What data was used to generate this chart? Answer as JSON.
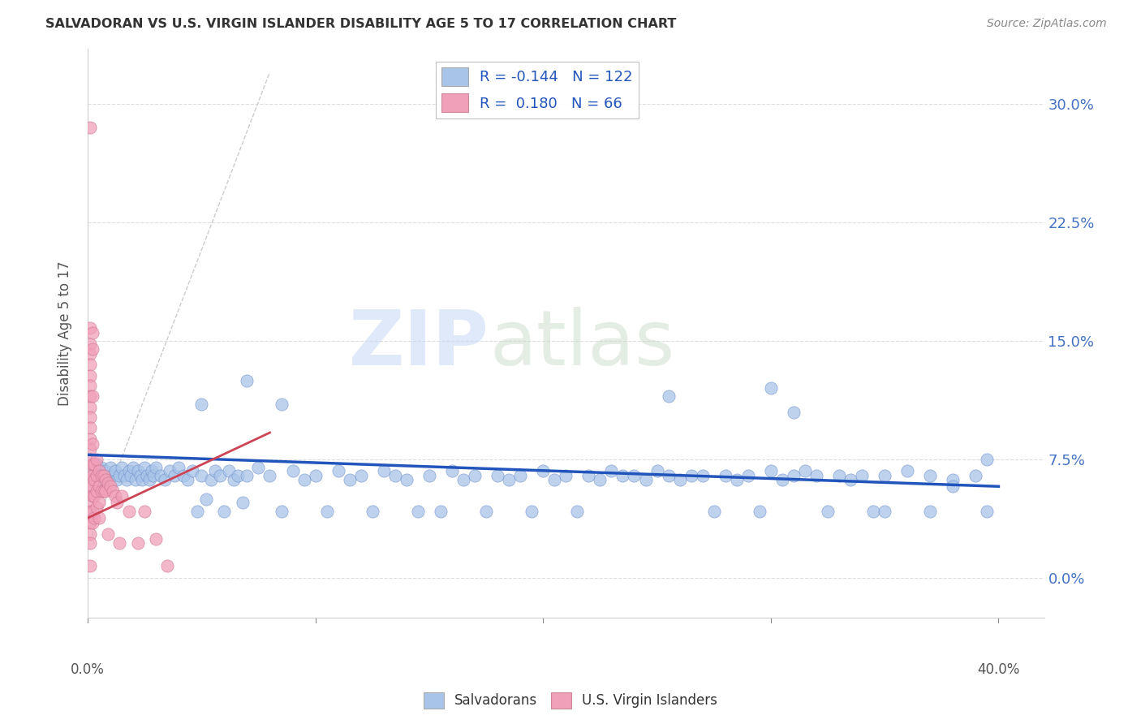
{
  "title": "SALVADORAN VS U.S. VIRGIN ISLANDER DISABILITY AGE 5 TO 17 CORRELATION CHART",
  "source": "Source: ZipAtlas.com",
  "xlabel_vals": [
    0.0,
    0.1,
    0.2,
    0.3,
    0.4
  ],
  "xlabel_edge_labels": [
    "0.0%",
    "40.0%"
  ],
  "xlabel_edge_vals": [
    0.0,
    0.4
  ],
  "ylabel_vals": [
    0.0,
    0.075,
    0.15,
    0.225,
    0.3
  ],
  "ylabel_labels": [
    "0.0%",
    "7.5%",
    "15.0%",
    "22.5%",
    "30.0%"
  ],
  "xlim": [
    0.0,
    0.42
  ],
  "ylim": [
    -0.025,
    0.335
  ],
  "watermark_zip": "ZIP",
  "watermark_atlas": "atlas",
  "legend_blue_label": "Salvadorans",
  "legend_pink_label": "U.S. Virgin Islanders",
  "blue_R": "-0.144",
  "blue_N": "122",
  "pink_R": "0.180",
  "pink_N": "66",
  "blue_color": "#a8c4e8",
  "pink_color": "#f0a0b8",
  "blue_line_color": "#2255bb",
  "pink_line_color": "#cc4455",
  "blue_line": [
    [
      0.0,
      0.078
    ],
    [
      0.4,
      0.058
    ]
  ],
  "pink_line": [
    [
      0.0,
      0.038
    ],
    [
      0.08,
      0.092
    ]
  ],
  "blue_scatter": [
    [
      0.003,
      0.068
    ],
    [
      0.004,
      0.072
    ],
    [
      0.005,
      0.065
    ],
    [
      0.006,
      0.07
    ],
    [
      0.007,
      0.062
    ],
    [
      0.008,
      0.068
    ],
    [
      0.009,
      0.065
    ],
    [
      0.01,
      0.07
    ],
    [
      0.011,
      0.065
    ],
    [
      0.012,
      0.068
    ],
    [
      0.013,
      0.062
    ],
    [
      0.014,
      0.065
    ],
    [
      0.015,
      0.07
    ],
    [
      0.016,
      0.065
    ],
    [
      0.017,
      0.062
    ],
    [
      0.018,
      0.068
    ],
    [
      0.019,
      0.065
    ],
    [
      0.02,
      0.07
    ],
    [
      0.021,
      0.062
    ],
    [
      0.022,
      0.068
    ],
    [
      0.023,
      0.065
    ],
    [
      0.024,
      0.062
    ],
    [
      0.025,
      0.07
    ],
    [
      0.026,
      0.065
    ],
    [
      0.027,
      0.062
    ],
    [
      0.028,
      0.068
    ],
    [
      0.029,
      0.065
    ],
    [
      0.03,
      0.07
    ],
    [
      0.032,
      0.065
    ],
    [
      0.034,
      0.062
    ],
    [
      0.036,
      0.068
    ],
    [
      0.038,
      0.065
    ],
    [
      0.04,
      0.07
    ],
    [
      0.042,
      0.065
    ],
    [
      0.044,
      0.062
    ],
    [
      0.046,
      0.068
    ],
    [
      0.048,
      0.042
    ],
    [
      0.05,
      0.065
    ],
    [
      0.052,
      0.05
    ],
    [
      0.054,
      0.062
    ],
    [
      0.056,
      0.068
    ],
    [
      0.058,
      0.065
    ],
    [
      0.06,
      0.042
    ],
    [
      0.062,
      0.068
    ],
    [
      0.064,
      0.062
    ],
    [
      0.066,
      0.065
    ],
    [
      0.068,
      0.048
    ],
    [
      0.07,
      0.065
    ],
    [
      0.075,
      0.07
    ],
    [
      0.08,
      0.065
    ],
    [
      0.085,
      0.042
    ],
    [
      0.09,
      0.068
    ],
    [
      0.095,
      0.062
    ],
    [
      0.1,
      0.065
    ],
    [
      0.105,
      0.042
    ],
    [
      0.11,
      0.068
    ],
    [
      0.115,
      0.062
    ],
    [
      0.12,
      0.065
    ],
    [
      0.125,
      0.042
    ],
    [
      0.13,
      0.068
    ],
    [
      0.05,
      0.11
    ],
    [
      0.07,
      0.125
    ],
    [
      0.085,
      0.11
    ],
    [
      0.135,
      0.065
    ],
    [
      0.14,
      0.062
    ],
    [
      0.145,
      0.042
    ],
    [
      0.15,
      0.065
    ],
    [
      0.155,
      0.042
    ],
    [
      0.16,
      0.068
    ],
    [
      0.165,
      0.062
    ],
    [
      0.17,
      0.065
    ],
    [
      0.175,
      0.042
    ],
    [
      0.18,
      0.065
    ],
    [
      0.185,
      0.062
    ],
    [
      0.19,
      0.065
    ],
    [
      0.195,
      0.042
    ],
    [
      0.2,
      0.068
    ],
    [
      0.205,
      0.062
    ],
    [
      0.21,
      0.065
    ],
    [
      0.215,
      0.042
    ],
    [
      0.22,
      0.065
    ],
    [
      0.225,
      0.062
    ],
    [
      0.23,
      0.068
    ],
    [
      0.235,
      0.065
    ],
    [
      0.24,
      0.065
    ],
    [
      0.245,
      0.062
    ],
    [
      0.25,
      0.068
    ],
    [
      0.255,
      0.065
    ],
    [
      0.26,
      0.062
    ],
    [
      0.265,
      0.065
    ],
    [
      0.27,
      0.065
    ],
    [
      0.275,
      0.042
    ],
    [
      0.28,
      0.065
    ],
    [
      0.285,
      0.062
    ],
    [
      0.29,
      0.065
    ],
    [
      0.295,
      0.042
    ],
    [
      0.3,
      0.068
    ],
    [
      0.305,
      0.062
    ],
    [
      0.31,
      0.065
    ],
    [
      0.315,
      0.068
    ],
    [
      0.32,
      0.065
    ],
    [
      0.255,
      0.115
    ],
    [
      0.3,
      0.12
    ],
    [
      0.31,
      0.105
    ],
    [
      0.325,
      0.042
    ],
    [
      0.33,
      0.065
    ],
    [
      0.335,
      0.062
    ],
    [
      0.34,
      0.065
    ],
    [
      0.345,
      0.042
    ],
    [
      0.35,
      0.065
    ],
    [
      0.36,
      0.068
    ],
    [
      0.37,
      0.065
    ],
    [
      0.38,
      0.062
    ],
    [
      0.39,
      0.065
    ],
    [
      0.35,
      0.042
    ],
    [
      0.37,
      0.042
    ],
    [
      0.38,
      0.058
    ],
    [
      0.395,
      0.042
    ],
    [
      0.395,
      0.075
    ]
  ],
  "pink_scatter": [
    [
      0.001,
      0.285
    ],
    [
      0.001,
      0.158
    ],
    [
      0.001,
      0.148
    ],
    [
      0.001,
      0.142
    ],
    [
      0.001,
      0.135
    ],
    [
      0.001,
      0.128
    ],
    [
      0.001,
      0.122
    ],
    [
      0.001,
      0.115
    ],
    [
      0.001,
      0.108
    ],
    [
      0.001,
      0.102
    ],
    [
      0.001,
      0.095
    ],
    [
      0.001,
      0.088
    ],
    [
      0.001,
      0.082
    ],
    [
      0.001,
      0.075
    ],
    [
      0.001,
      0.068
    ],
    [
      0.001,
      0.062
    ],
    [
      0.001,
      0.055
    ],
    [
      0.001,
      0.048
    ],
    [
      0.001,
      0.042
    ],
    [
      0.001,
      0.035
    ],
    [
      0.001,
      0.028
    ],
    [
      0.001,
      0.022
    ],
    [
      0.001,
      0.008
    ],
    [
      0.002,
      0.155
    ],
    [
      0.002,
      0.145
    ],
    [
      0.002,
      0.115
    ],
    [
      0.002,
      0.085
    ],
    [
      0.002,
      0.072
    ],
    [
      0.002,
      0.065
    ],
    [
      0.002,
      0.058
    ],
    [
      0.002,
      0.052
    ],
    [
      0.002,
      0.042
    ],
    [
      0.002,
      0.035
    ],
    [
      0.003,
      0.072
    ],
    [
      0.003,
      0.062
    ],
    [
      0.003,
      0.052
    ],
    [
      0.003,
      0.038
    ],
    [
      0.004,
      0.075
    ],
    [
      0.004,
      0.065
    ],
    [
      0.004,
      0.055
    ],
    [
      0.004,
      0.045
    ],
    [
      0.005,
      0.068
    ],
    [
      0.005,
      0.058
    ],
    [
      0.005,
      0.048
    ],
    [
      0.005,
      0.038
    ],
    [
      0.006,
      0.065
    ],
    [
      0.006,
      0.055
    ],
    [
      0.007,
      0.065
    ],
    [
      0.007,
      0.055
    ],
    [
      0.008,
      0.062
    ],
    [
      0.008,
      0.055
    ],
    [
      0.009,
      0.06
    ],
    [
      0.009,
      0.028
    ],
    [
      0.01,
      0.058
    ],
    [
      0.011,
      0.055
    ],
    [
      0.012,
      0.052
    ],
    [
      0.013,
      0.048
    ],
    [
      0.014,
      0.022
    ],
    [
      0.015,
      0.052
    ],
    [
      0.018,
      0.042
    ],
    [
      0.022,
      0.022
    ],
    [
      0.025,
      0.042
    ],
    [
      0.03,
      0.025
    ],
    [
      0.035,
      0.008
    ]
  ]
}
